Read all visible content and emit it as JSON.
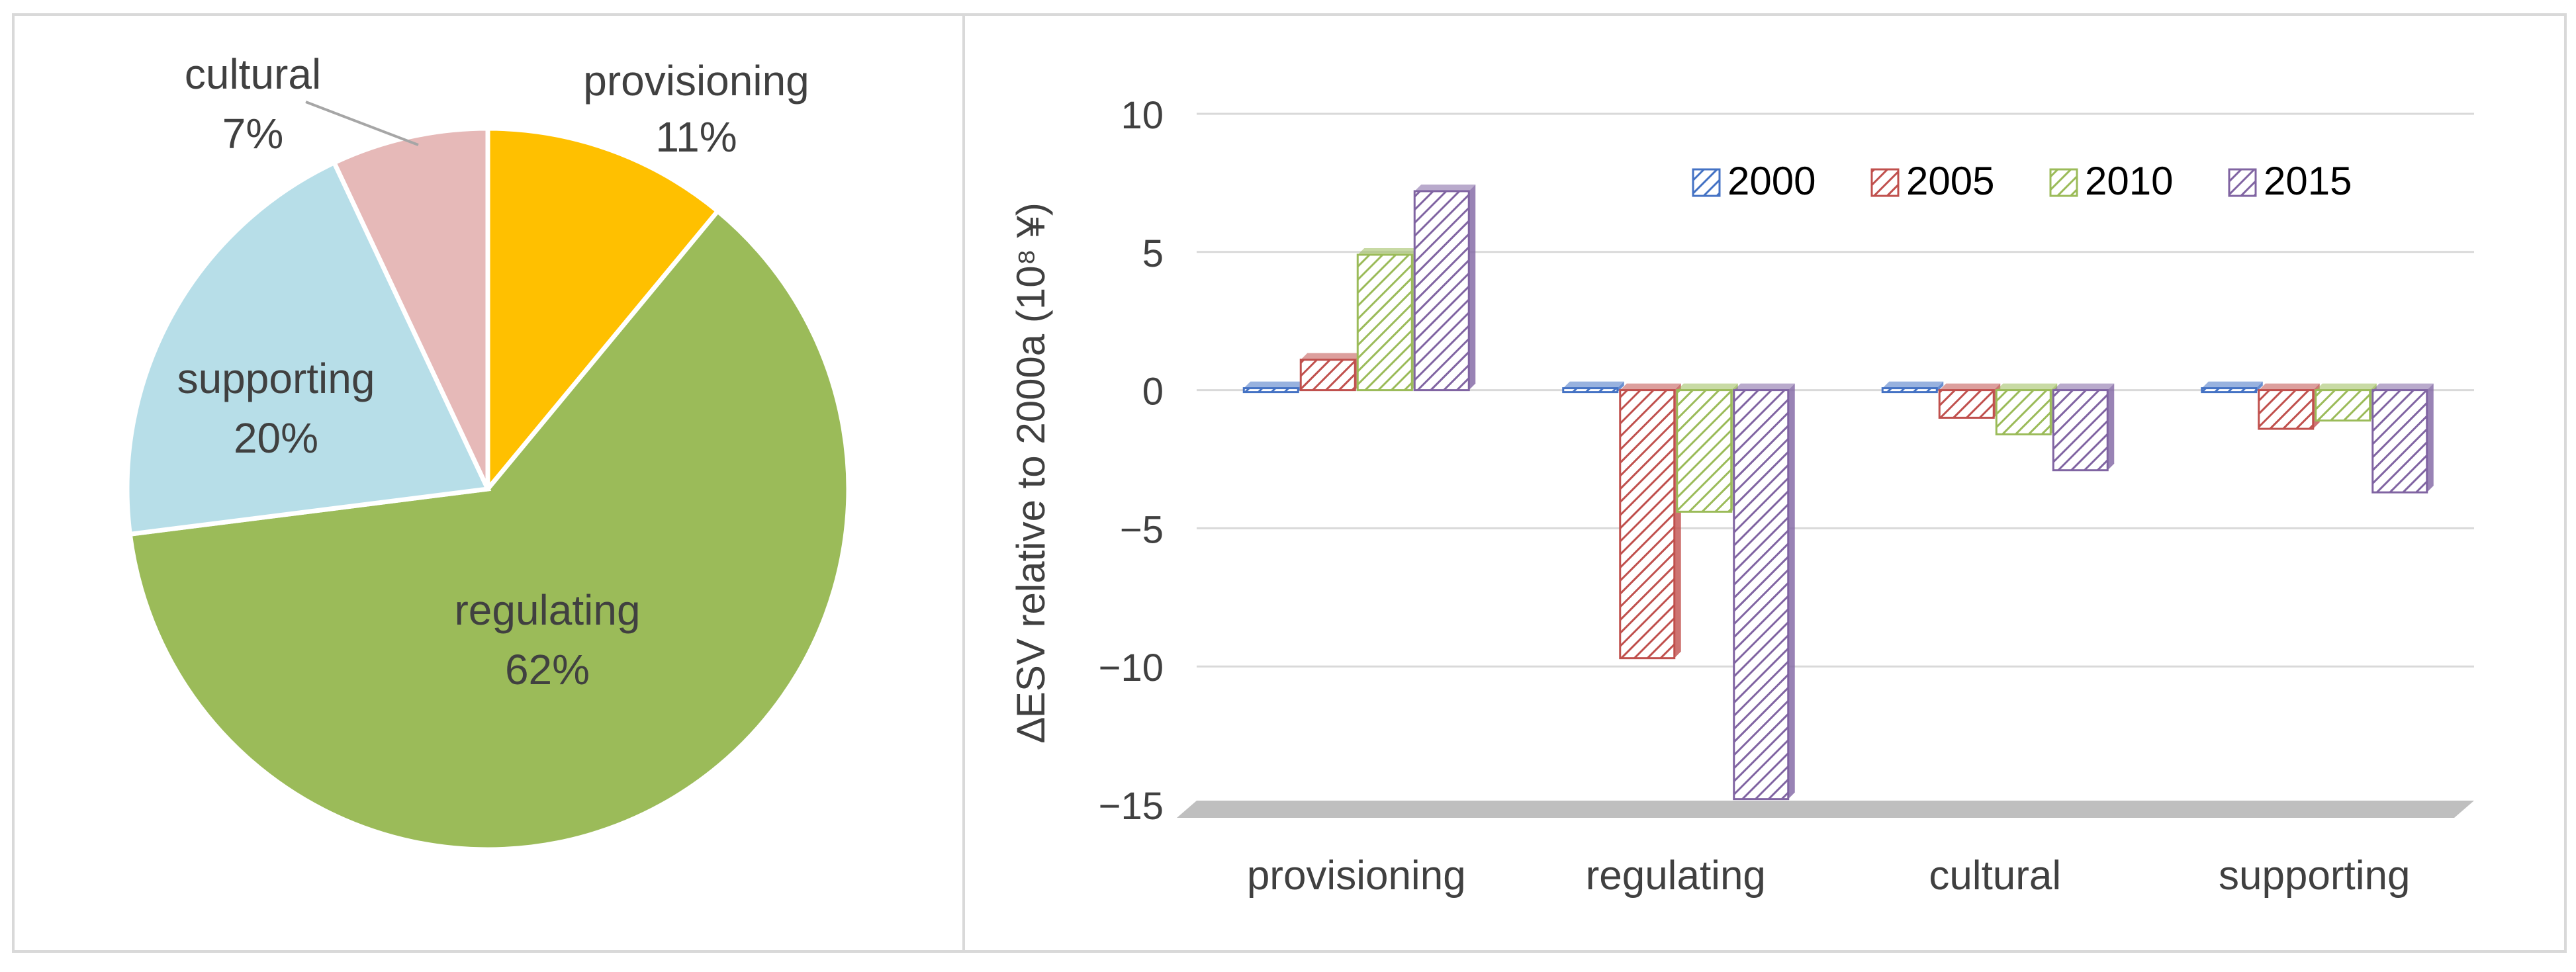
{
  "chart_data": [
    {
      "type": "pie",
      "title": "",
      "slices": [
        {
          "name": "provisioning",
          "value": 11,
          "label": "11%",
          "color": "#ffc000"
        },
        {
          "name": "regulating",
          "value": 62,
          "label": "62%",
          "color": "#9bbb59"
        },
        {
          "name": "supporting",
          "value": 20,
          "label": "20%",
          "color": "#b7dee8"
        },
        {
          "name": "cultural",
          "value": 7,
          "label": "7%",
          "color": "#e6b9b8"
        }
      ]
    },
    {
      "type": "bar",
      "title": "",
      "ylabel": "∆ESV relative to 2000a (10⁸ ¥)",
      "xlabel": "",
      "ylim": [
        -15,
        10
      ],
      "yticks": [
        10,
        5,
        0,
        -5,
        -10,
        -15
      ],
      "ytick_labels": [
        "10",
        "5",
        "0",
        "−5",
        "−10",
        "−15"
      ],
      "categories": [
        "provisioning",
        "regulating",
        "cultural",
        "supporting"
      ],
      "grid": true,
      "legend_position": "top-right",
      "series": [
        {
          "name": "2000",
          "color": "#4472c4",
          "values": [
            0,
            0,
            0,
            0
          ]
        },
        {
          "name": "2005",
          "color": "#c0504d",
          "values": [
            1.1,
            -9.7,
            -1.0,
            -1.4
          ]
        },
        {
          "name": "2010",
          "color": "#9bbb59",
          "values": [
            4.9,
            -4.4,
            -1.6,
            -1.1
          ]
        },
        {
          "name": "2015",
          "color": "#8064a2",
          "values": [
            7.2,
            -14.8,
            -2.9,
            -3.7
          ]
        }
      ]
    }
  ]
}
